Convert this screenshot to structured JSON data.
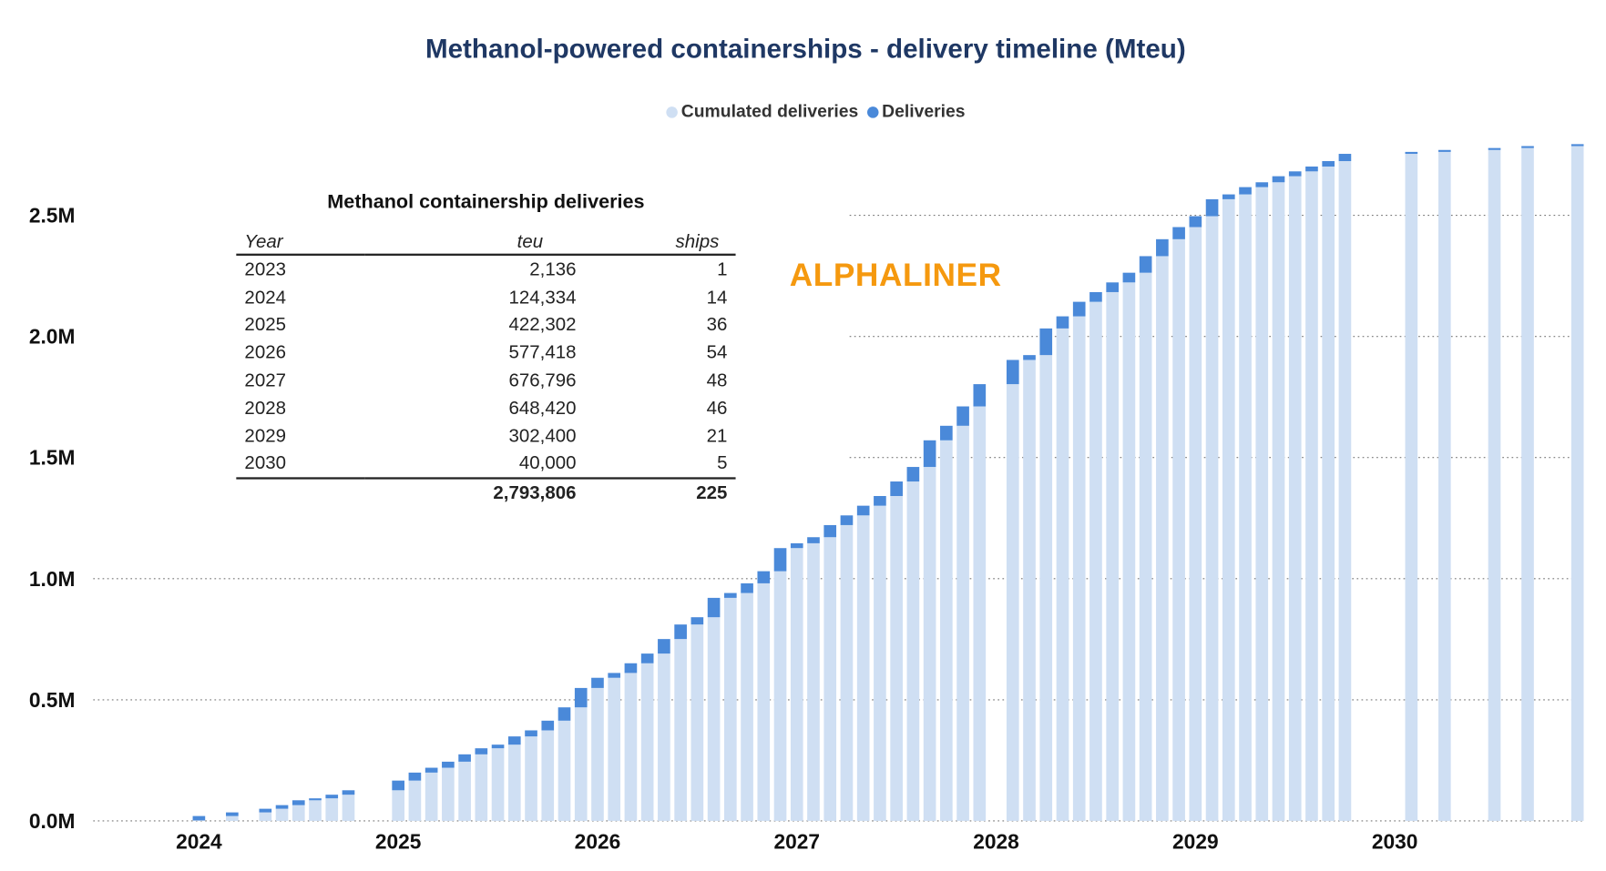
{
  "title": "Methanol-powered containerships - delivery timeline (Mteu)",
  "legend": [
    {
      "label": "Cumulated deliveries",
      "color": "#cfdff3"
    },
    {
      "label": "Deliveries",
      "color": "#4a89d9"
    }
  ],
  "brand": "ALPHALINER",
  "table": {
    "title": "Methanol containership deliveries",
    "headers": [
      "Year",
      "teu",
      "ships"
    ],
    "rows": [
      [
        "2023",
        "2,136",
        "1"
      ],
      [
        "2024",
        "124,334",
        "14"
      ],
      [
        "2025",
        "422,302",
        "36"
      ],
      [
        "2026",
        "577,418",
        "54"
      ],
      [
        "2027",
        "676,796",
        "48"
      ],
      [
        "2028",
        "648,420",
        "46"
      ],
      [
        "2029",
        "302,400",
        "21"
      ],
      [
        "2030",
        "40,000",
        "5"
      ]
    ],
    "total": [
      "",
      "2,793,806",
      "225"
    ]
  },
  "chart_data": {
    "type": "bar",
    "stacked": true,
    "title": "Methanol-powered containerships - delivery timeline (Mteu)",
    "y_ticks": [
      "0.0M",
      "0.5M",
      "1.0M",
      "1.5M",
      "2.0M",
      "2.5M"
    ],
    "ylim": [
      0,
      2800000
    ],
    "x_ticks": [
      "2024",
      "2025",
      "2026",
      "2027",
      "2028",
      "2029",
      "2030"
    ],
    "grid": "horizontal dotted",
    "legend_position": "top",
    "cumulated_start": 2136,
    "series": [
      {
        "name": "Cumulated deliveries",
        "color": "#cfdff3"
      },
      {
        "name": "Deliveries",
        "color": "#4a89d9"
      }
    ],
    "x": [
      "2024-01",
      "2024-03",
      "2024-05",
      "2024-06",
      "2024-07",
      "2024-08",
      "2024-09",
      "2024-10",
      "2025-01",
      "2025-02",
      "2025-03",
      "2025-04",
      "2025-05",
      "2025-06",
      "2025-07",
      "2025-08",
      "2025-09",
      "2025-10",
      "2025-11",
      "2025-12",
      "2026-01",
      "2026-02",
      "2026-03",
      "2026-04",
      "2026-05",
      "2026-06",
      "2026-07",
      "2026-08",
      "2026-09",
      "2026-10",
      "2026-11",
      "2026-12",
      "2027-01",
      "2027-02",
      "2027-03",
      "2027-04",
      "2027-05",
      "2027-06",
      "2027-07",
      "2027-08",
      "2027-09",
      "2027-10",
      "2027-11",
      "2027-12",
      "2028-02",
      "2028-03",
      "2028-04",
      "2028-05",
      "2028-06",
      "2028-07",
      "2028-08",
      "2028-09",
      "2028-10",
      "2028-11",
      "2028-12",
      "2029-01",
      "2029-02",
      "2029-03",
      "2029-04",
      "2029-05",
      "2029-06",
      "2029-07",
      "2029-08",
      "2029-09",
      "2029-10",
      "2030-02",
      "2030-04",
      "2030-07",
      "2030-09",
      "2030-12"
    ],
    "deliveries": [
      18000,
      15000,
      15000,
      15000,
      20000,
      8000,
      15000,
      18334,
      40000,
      33000,
      20000,
      25000,
      30302,
      25000,
      15000,
      34000,
      25000,
      40000,
      55000,
      80000,
      42000,
      20000,
      40000,
      40000,
      60000,
      60000,
      30000,
      80000,
      20000,
      40000,
      50000,
      95418,
      20000,
      25000,
      50000,
      40000,
      40000,
      40000,
      60000,
      60000,
      110000,
      60000,
      80000,
      91796,
      100000,
      20000,
      110000,
      50000,
      60000,
      40000,
      40000,
      40000,
      68420,
      70000,
      50000,
      45000,
      70000,
      20000,
      30000,
      20000,
      25000,
      20000,
      20000,
      22400,
      30000,
      8000,
      8000,
      8000,
      8000,
      8000
    ]
  }
}
